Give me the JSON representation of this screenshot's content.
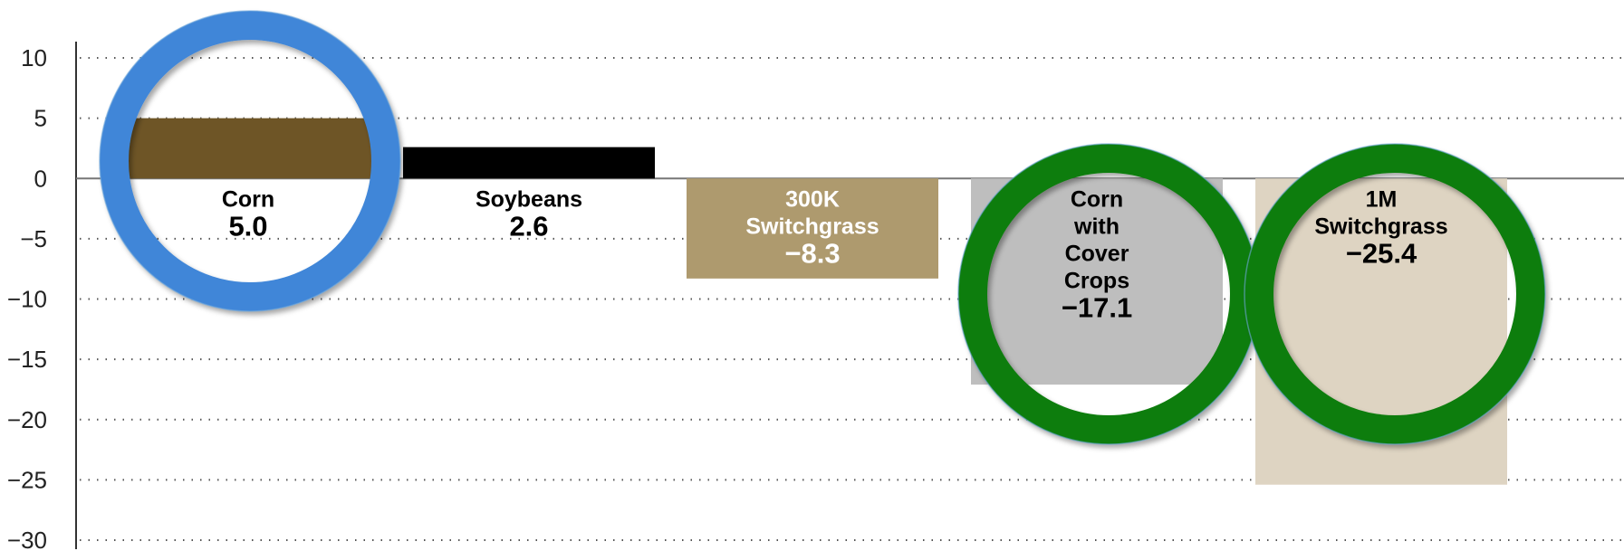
{
  "chart_data": {
    "type": "bar",
    "title": "",
    "xlabel": "",
    "ylabel": "",
    "ylim": [
      -30,
      10
    ],
    "yticks": [
      10,
      5,
      0,
      -5,
      -10,
      -15,
      -20,
      -25,
      -30
    ],
    "ytick_labels": [
      "10",
      "5",
      "0",
      "−5",
      "−10",
      "−15",
      "−20",
      "−25",
      "−30"
    ],
    "grid": "horizontal dotted",
    "categories": [
      [
        "Corn"
      ],
      [
        "Soybeans"
      ],
      [
        "300K",
        "Switchgrass"
      ],
      [
        "Corn",
        "with",
        "Cover",
        "Crops"
      ],
      [
        "1M",
        "Switchgrass"
      ]
    ],
    "values": [
      5.0,
      2.6,
      -8.3,
      -17.1,
      -25.4
    ],
    "value_labels": [
      "5.0",
      "2.6",
      "−8.3",
      "−17.1",
      "−25.4"
    ],
    "colors": [
      "#6e5526",
      "#000000",
      "#ae9a6e",
      "#bebebe",
      "#ded4c2"
    ],
    "label_colors": [
      "#000000",
      "#000000",
      "#ffffff",
      "#000000",
      "#000000"
    ],
    "highlights": [
      {
        "category_index": 0,
        "color": "#3f86d8"
      },
      {
        "category_index": 3,
        "color": "#0c7d0c"
      },
      {
        "category_index": 4,
        "color": "#0c7d0c"
      }
    ]
  }
}
